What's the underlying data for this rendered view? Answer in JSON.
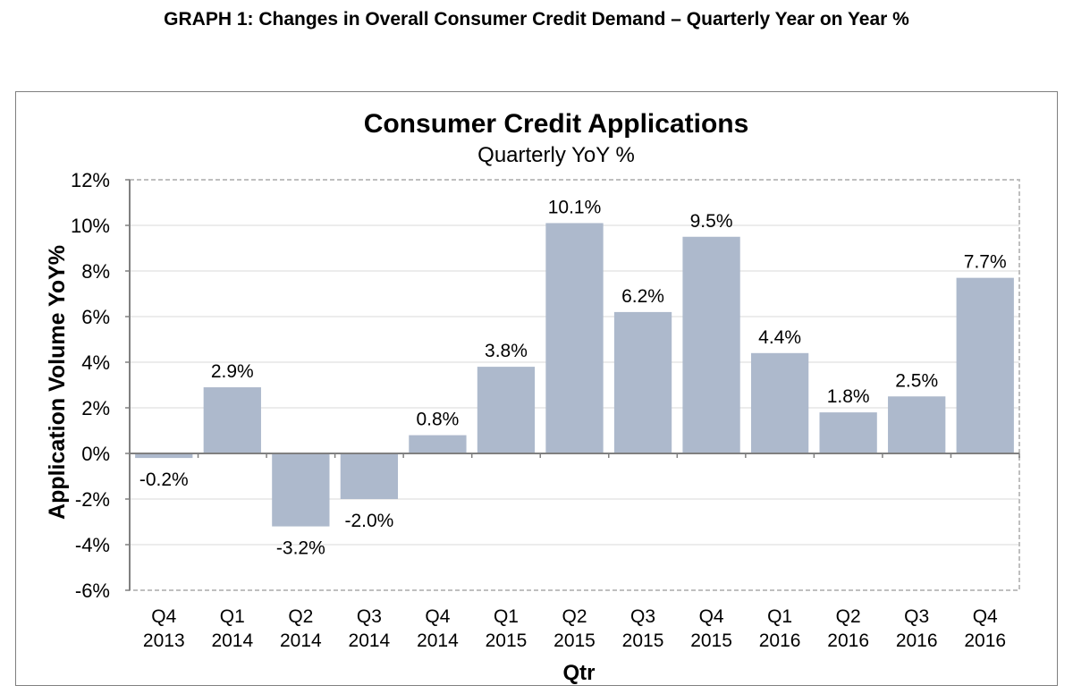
{
  "page": {
    "heading": "GRAPH 1: Changes in Overall Consumer Credit Demand – Quarterly Year on Year %"
  },
  "chart_data": {
    "type": "bar",
    "title": "Consumer Credit Applications",
    "subtitle": "Quarterly YoY %",
    "xlabel": "Qtr",
    "ylabel": "Application Volume YoY%",
    "categories": [
      [
        "Q4",
        "2013"
      ],
      [
        "Q1",
        "2014"
      ],
      [
        "Q2",
        "2014"
      ],
      [
        "Q3",
        "2014"
      ],
      [
        "Q4",
        "2014"
      ],
      [
        "Q1",
        "2015"
      ],
      [
        "Q2",
        "2015"
      ],
      [
        "Q3",
        "2015"
      ],
      [
        "Q4",
        "2015"
      ],
      [
        "Q1",
        "2016"
      ],
      [
        "Q2",
        "2016"
      ],
      [
        "Q3",
        "2016"
      ],
      [
        "Q4",
        "2016"
      ]
    ],
    "values": [
      -0.2,
      2.9,
      -3.2,
      -2.0,
      0.8,
      3.8,
      10.1,
      6.2,
      9.5,
      4.4,
      1.8,
      2.5,
      7.7
    ],
    "data_labels": [
      "-0.2%",
      "2.9%",
      "-3.2%",
      "-2.0%",
      "0.8%",
      "3.8%",
      "10.1%",
      "6.2%",
      "9.5%",
      "4.4%",
      "1.8%",
      "2.5%",
      "7.7%"
    ],
    "ylim": [
      -6,
      12
    ],
    "yticks": [
      12,
      10,
      8,
      6,
      4,
      2,
      0,
      -2,
      -4,
      -6
    ],
    "ytick_labels": [
      "12%",
      "10%",
      "8%",
      "6%",
      "4%",
      "2%",
      "0%",
      "-2%",
      "-4%",
      "-6%"
    ],
    "grid": true,
    "legend": "none",
    "colors": {
      "bar": "#adb9cc",
      "grid": "#d9d9d9",
      "axis": "#808080",
      "plot_border": "#bfbfbf"
    }
  }
}
